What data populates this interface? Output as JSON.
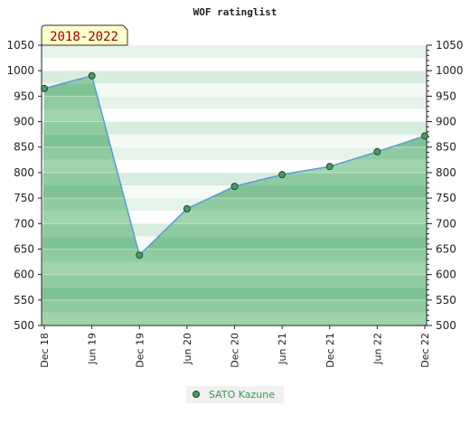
{
  "chart_data": {
    "type": "area",
    "title": "WOF ratinglist",
    "badge": "2018-2022",
    "xlabel": "",
    "ylabel": "",
    "categories": [
      "Dec 18",
      "Jun 19",
      "Dec 19",
      "Jun 20",
      "Dec 20",
      "Jun 21",
      "Dec 21",
      "Jun 22",
      "Dec 22"
    ],
    "ylim": [
      500,
      1050
    ],
    "yticks": [
      500,
      550,
      600,
      650,
      700,
      750,
      800,
      850,
      900,
      950,
      1000,
      1050
    ],
    "series": [
      {
        "name": "SATO Kazune",
        "values": [
          965,
          990,
          638,
          729,
          773,
          796,
          812,
          841,
          872
        ]
      }
    ],
    "grid": true,
    "legend_position": "bottom-center",
    "colors": {
      "fill": "#7cc396",
      "line": "#5b9bd5",
      "marker": "#4a9a5e",
      "badge_bg": "#ffffcc",
      "badge_text": "#990000",
      "legend_text": "#3a9a55"
    }
  }
}
